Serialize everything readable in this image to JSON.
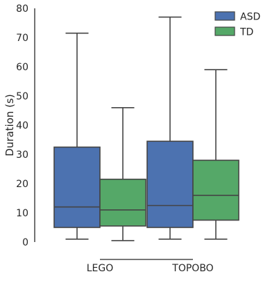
{
  "chart_data": {
    "type": "box",
    "ylabel": "Duration (s)",
    "xlabel": "",
    "ylim": [
      0,
      80
    ],
    "yticks": [
      0,
      10,
      20,
      30,
      40,
      50,
      60,
      70,
      80
    ],
    "categories": [
      "LEGO",
      "TOPOBO"
    ],
    "legend_position": "top-right",
    "grid": false,
    "series": [
      {
        "name": "ASD",
        "color": "#4c72b0",
        "boxes": [
          {
            "whislo": 1,
            "q1": 5,
            "median": 12,
            "q3": 32.5,
            "whishi": 71.5
          },
          {
            "whislo": 1,
            "q1": 5,
            "median": 12.5,
            "q3": 34.5,
            "whishi": 77
          }
        ]
      },
      {
        "name": "TD",
        "color": "#55a868",
        "boxes": [
          {
            "whislo": 0.5,
            "q1": 5.5,
            "median": 11,
            "q3": 21.5,
            "whishi": 46
          },
          {
            "whislo": 1,
            "q1": 7.5,
            "median": 16,
            "q3": 28,
            "whishi": 59
          }
        ]
      }
    ]
  }
}
